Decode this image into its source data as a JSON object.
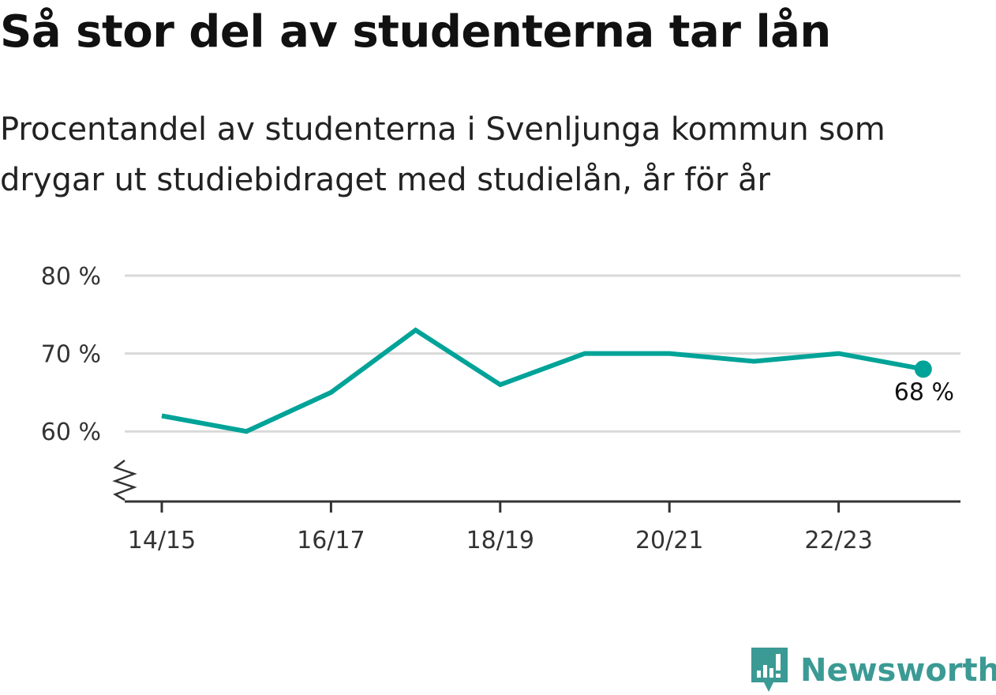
{
  "header": {
    "title": "Så stor del av studenterna tar lån",
    "subtitle_line1": "Procentandel av studenterna i Svenljunga kommun som",
    "subtitle_line2": "drygar ut studiebidraget med studielån, år för år"
  },
  "chart_data": {
    "type": "line",
    "title": "Så stor del av studenterna tar lån",
    "subtitle": "Procentandel av studenterna i Svenljunga kommun som drygar ut studiebidraget med studielån, år för år",
    "x": [
      "14/15",
      "15/16",
      "16/17",
      "17/18",
      "18/19",
      "19/20",
      "20/21",
      "21/22",
      "22/23",
      "23/24"
    ],
    "series": [
      {
        "values": [
          62,
          60,
          65,
          73,
          66,
          70,
          70,
          69,
          70,
          68
        ]
      }
    ],
    "x_tick_labels": [
      "14/15",
      "16/17",
      "18/19",
      "20/21",
      "22/23"
    ],
    "y_ticks": [
      60,
      70,
      80
    ],
    "y_tick_labels": [
      "60 %",
      "70 %",
      "80 %"
    ],
    "ylim": [
      51,
      80
    ],
    "y_axis_break": true,
    "grid": true,
    "end_label": "68 %",
    "colors": {
      "line": "#00a398",
      "grid": "#d9d9d9",
      "axis": "#333333"
    }
  },
  "brand": {
    "name": "Newsworthy",
    "icon": "newsworthy-logo-icon",
    "color": "#3b9a94"
  }
}
